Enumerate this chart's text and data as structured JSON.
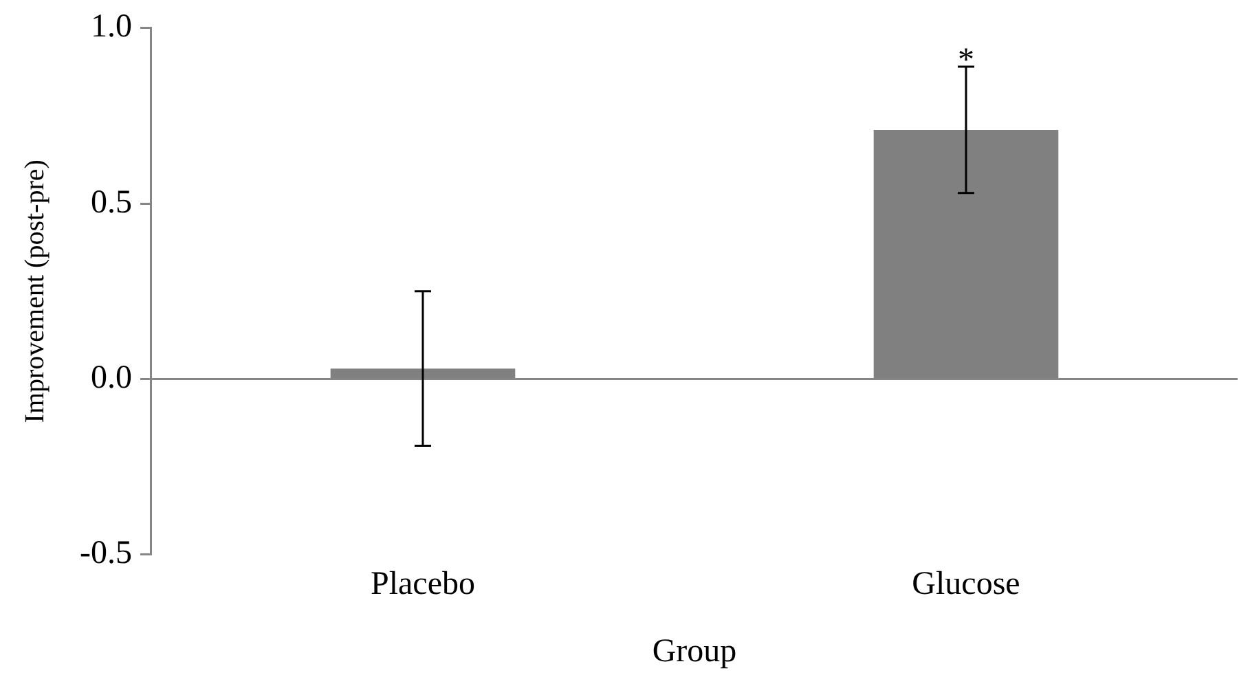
{
  "chart_data": {
    "type": "bar",
    "xlabel": "Group",
    "ylabel": "Improvement (post-pre)",
    "categories": [
      "Placebo",
      "Glucose"
    ],
    "values": [
      0.03,
      0.71
    ],
    "errors": [
      0.22,
      0.18
    ],
    "color": "#808080",
    "ylim": [
      -0.5,
      1.0
    ],
    "yticks": [
      {
        "value": -0.5,
        "label": "-0.5"
      },
      {
        "value": 0,
        "label": "0.0"
      },
      {
        "value": 0.5,
        "label": "0.5"
      },
      {
        "value": 1,
        "label": "1.0"
      }
    ],
    "annotations": [
      {
        "text": "*",
        "x": "Glucose",
        "y": 0.89
      }
    ],
    "ref_lines": [
      {
        "axis": "y",
        "value": 0,
        "color": "#868686"
      }
    ],
    "grid": false,
    "legend": false
  }
}
